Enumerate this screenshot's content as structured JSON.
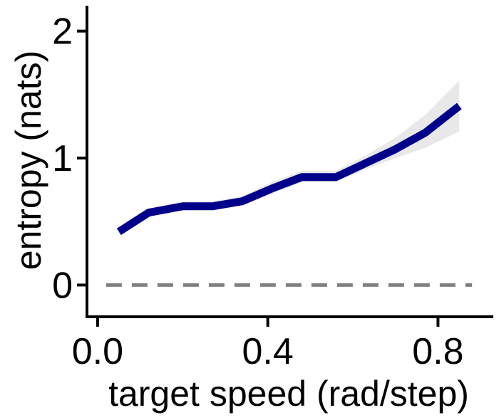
{
  "chart_data": {
    "type": "line",
    "xlabel": "target speed (rad/step)",
    "ylabel": "entropy (nats)",
    "xlim": [
      -0.025,
      0.93
    ],
    "ylim": [
      -0.25,
      2.2
    ],
    "x_ticks": [
      0.0,
      0.4,
      0.8
    ],
    "x_tick_labels": [
      "0.0",
      "0.4",
      "0.8"
    ],
    "y_ticks": [
      0,
      1,
      2
    ],
    "y_tick_labels": [
      "0",
      "1",
      "2"
    ],
    "grid": false,
    "legend": "none",
    "series": [
      {
        "x": [
          0.05,
          0.12,
          0.2,
          0.27,
          0.34,
          0.41,
          0.48,
          0.56,
          0.63,
          0.7,
          0.77,
          0.85
        ],
        "y": [
          0.42,
          0.57,
          0.62,
          0.62,
          0.66,
          0.76,
          0.85,
          0.85,
          0.96,
          1.07,
          1.2,
          1.41
        ],
        "y_lower": [
          0.4,
          0.54,
          0.59,
          0.59,
          0.63,
          0.72,
          0.81,
          0.81,
          0.91,
          1.0,
          1.08,
          1.21
        ],
        "y_upper": [
          0.45,
          0.6,
          0.66,
          0.66,
          0.7,
          0.81,
          0.9,
          0.9,
          1.02,
          1.16,
          1.34,
          1.61
        ],
        "color": "#00008b",
        "band_color": "#e8e8e8"
      }
    ],
    "reference_line": {
      "y": 0,
      "style": "dashed",
      "color": "#808080",
      "x_range": [
        0.02,
        0.88
      ]
    }
  }
}
